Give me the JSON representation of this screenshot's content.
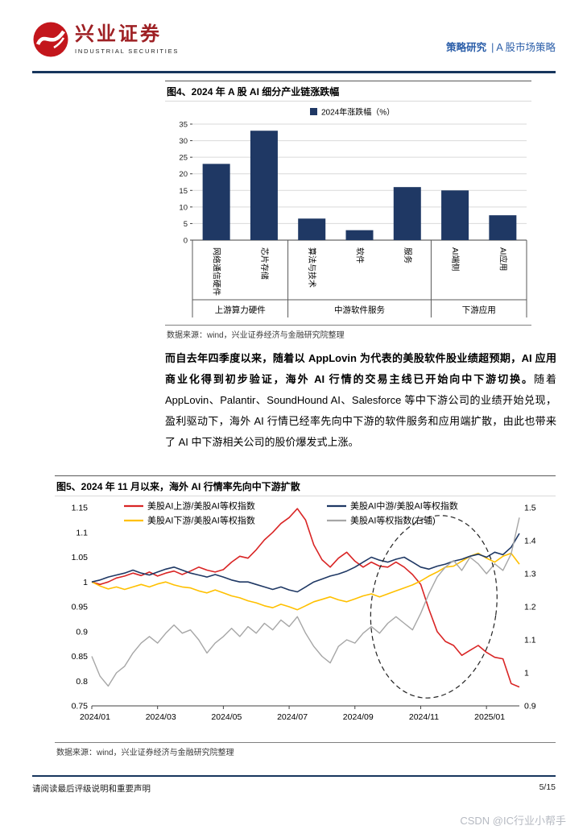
{
  "header": {
    "brand_cn": "兴业证券",
    "brand_en": "INDUSTRIAL SECURITIES",
    "logo_icon": "industrial-securities-logo",
    "category": "策略研究",
    "separator": "|",
    "subcategory": "A 股市场策略"
  },
  "figure4": {
    "title": "图4、2024 年 A 股 AI 细分产业链涨跌幅",
    "source": "数据来源：wind，兴业证券经济与金融研究院整理"
  },
  "paragraph": {
    "bold": "而自去年四季度以来，随着以 AppLovin 为代表的美股软件股业绩超预期，AI 应用商业化得到初步验证，海外 AI 行情的交易主线已开始向中下游切换。",
    "regular": "随着 AppLovin、Palantir、SoundHound AI、Salesforce 等中下游公司的业绩开始兑现，盈利驱动下，海外 AI 行情已经率先向中下游的软件服务和应用端扩散，由此也带来了 AI 中下游相关公司的股价爆发式上涨。"
  },
  "figure5": {
    "title": "图5、2024 年 11 月以来，海外 AI 行情率先向中下游扩散",
    "source": "数据来源：wind，兴业证券经济与金融研究院整理"
  },
  "footer": {
    "disclaimer": "请阅读最后评级说明和重要声明",
    "page": "5/15"
  },
  "watermark": "CSDN @IC行业小帮手",
  "colors": {
    "brand_navy": "#17365d",
    "bar_navy": "#1f3864",
    "series_red": "#d92525",
    "series_yellow": "#ffc000",
    "series_blue": "#1f3864",
    "series_gray": "#a6a6a6",
    "header_blue": "#2a5da8",
    "logo_red": "#c3161c"
  },
  "chart_data": [
    {
      "type": "bar",
      "title": "2024 年 A 股 AI 细分产业链涨跌幅",
      "legend": [
        "2024年涨跌幅（%）"
      ],
      "categories": [
        "网络通信硬件",
        "芯片存储",
        "算法与技术",
        "软件",
        "服务",
        "AI端侧",
        "AI应用"
      ],
      "values": [
        23,
        33,
        6.5,
        3,
        16,
        15,
        7.5
      ],
      "groups": [
        {
          "label": "上游算力硬件",
          "span": [
            0,
            1
          ]
        },
        {
          "label": "中游软件服务",
          "span": [
            2,
            4
          ]
        },
        {
          "label": "下游应用",
          "span": [
            5,
            6
          ]
        }
      ],
      "xlabel": "",
      "ylabel": "",
      "ylim": [
        0,
        35
      ],
      "ytick_step": 5,
      "grid": true,
      "bar_color": "#1f3864"
    },
    {
      "type": "line",
      "title": "2024 年 11 月以来，海外 AI 行情率先向中下游扩散",
      "x_ticks": [
        "2024/01",
        "2024/03",
        "2024/05",
        "2024/07",
        "2024/09",
        "2024/11",
        "2025/01"
      ],
      "x_range_months": [
        0,
        13
      ],
      "left_ylim": [
        0.75,
        1.15
      ],
      "left_ytick_step": 0.05,
      "right_ylim": [
        0.9,
        1.5
      ],
      "right_ytick_step": 0.1,
      "grid": false,
      "legend_position": "top",
      "series": [
        {
          "name": "美股AI上游/美股AI等权指数",
          "color": "#d92525",
          "axis": "left",
          "values": [
            1.0,
            0.995,
            1.0,
            1.008,
            1.012,
            1.018,
            1.013,
            1.02,
            1.012,
            1.018,
            1.022,
            1.015,
            1.022,
            1.03,
            1.024,
            1.02,
            1.025,
            1.04,
            1.052,
            1.048,
            1.065,
            1.085,
            1.1,
            1.118,
            1.13,
            1.148,
            1.125,
            1.075,
            1.045,
            1.03,
            1.048,
            1.06,
            1.042,
            1.03,
            1.04,
            1.032,
            1.03,
            1.04,
            1.03,
            1.015,
            0.995,
            0.945,
            0.9,
            0.88,
            0.872,
            0.852,
            0.862,
            0.872,
            0.858,
            0.848,
            0.845,
            0.795,
            0.788
          ]
        },
        {
          "name": "美股AI下游/美股AI等权指数",
          "color": "#ffc000",
          "axis": "left",
          "values": [
            1.0,
            0.992,
            0.986,
            0.99,
            0.985,
            0.99,
            0.995,
            0.99,
            0.996,
            1.0,
            0.994,
            0.99,
            0.988,
            0.982,
            0.978,
            0.984,
            0.978,
            0.972,
            0.968,
            0.962,
            0.958,
            0.952,
            0.948,
            0.955,
            0.95,
            0.944,
            0.952,
            0.96,
            0.965,
            0.97,
            0.964,
            0.96,
            0.966,
            0.972,
            0.976,
            0.97,
            0.976,
            0.982,
            0.988,
            0.994,
            1.002,
            1.012,
            1.02,
            1.03,
            1.032,
            1.042,
            1.052,
            1.058,
            1.048,
            1.04,
            1.052,
            1.058,
            1.036
          ]
        },
        {
          "name": "美股AI中游/美股AI等权指数",
          "color": "#1f3864",
          "axis": "left",
          "values": [
            1.0,
            1.004,
            1.01,
            1.014,
            1.018,
            1.024,
            1.018,
            1.014,
            1.02,
            1.026,
            1.03,
            1.024,
            1.018,
            1.014,
            1.01,
            1.015,
            1.01,
            1.004,
            1.0,
            1.0,
            0.995,
            0.99,
            0.985,
            0.99,
            0.984,
            0.98,
            0.99,
            1.0,
            1.006,
            1.012,
            1.016,
            1.022,
            1.03,
            1.04,
            1.05,
            1.044,
            1.04,
            1.046,
            1.05,
            1.04,
            1.03,
            1.026,
            1.032,
            1.036,
            1.042,
            1.046,
            1.052,
            1.056,
            1.05,
            1.06,
            1.055,
            1.07,
            1.098
          ]
        },
        {
          "name": "美股AI等权指数(右轴)",
          "color": "#a6a6a6",
          "axis": "right",
          "values": [
            1.05,
            0.99,
            0.96,
            1.0,
            1.02,
            1.06,
            1.09,
            1.11,
            1.09,
            1.12,
            1.145,
            1.12,
            1.13,
            1.1,
            1.06,
            1.09,
            1.11,
            1.135,
            1.11,
            1.14,
            1.12,
            1.15,
            1.13,
            1.16,
            1.14,
            1.17,
            1.12,
            1.08,
            1.05,
            1.03,
            1.08,
            1.1,
            1.09,
            1.12,
            1.14,
            1.12,
            1.15,
            1.17,
            1.15,
            1.13,
            1.18,
            1.24,
            1.29,
            1.32,
            1.34,
            1.31,
            1.35,
            1.33,
            1.3,
            1.33,
            1.31,
            1.36,
            1.47
          ]
        }
      ],
      "annotation_ellipse": {
        "center_month": 10.4,
        "center_left_value": 0.95,
        "rx_months": 1.9,
        "ry_left_value": 0.185
      }
    }
  ]
}
